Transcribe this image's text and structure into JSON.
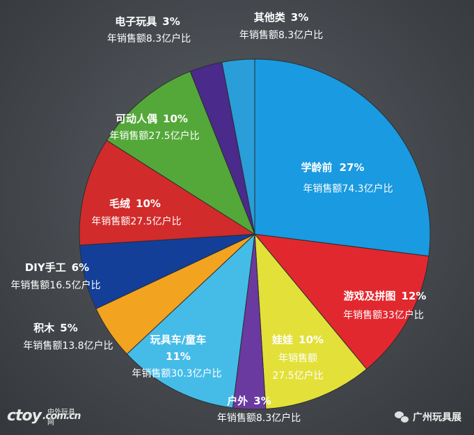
{
  "chart_data": {
    "type": "pie",
    "slices": [
      {
        "key": "preschool",
        "name": "学龄前",
        "percent": 27,
        "pct_label": "27%",
        "sales": "年销售额74.3亿户比",
        "color": "#1a9ae0"
      },
      {
        "key": "games",
        "name": "游戏及拼图",
        "percent": 12,
        "pct_label": "12%",
        "sales": "年销售额33亿户比",
        "color": "#e2282f"
      },
      {
        "key": "dolls",
        "name": "娃娃",
        "percent": 10,
        "pct_label": "10%",
        "sales_line1": "年销售额",
        "sales_line2": "27.5亿户比",
        "color": "#e3e03a"
      },
      {
        "key": "outdoor",
        "name": "户外",
        "percent": 3,
        "pct_label": "3%",
        "sales": "年销售额8.3亿户比",
        "color": "#6b3aa0"
      },
      {
        "key": "ride-on",
        "name": "玩具车/童车",
        "percent": 11,
        "pct_label": "11%",
        "sales": "年销售额30.3亿户比",
        "color": "#45bce8"
      },
      {
        "key": "blocks",
        "name": "积木",
        "percent": 5,
        "pct_label": "5%",
        "sales": "年销售额13.8亿户比",
        "color": "#f2a320"
      },
      {
        "key": "diy",
        "name": "DIY手工",
        "percent": 6,
        "pct_label": "6%",
        "sales": "年销售额16.5亿户比",
        "color": "#133f99"
      },
      {
        "key": "plush",
        "name": "毛绒",
        "percent": 10,
        "pct_label": "10%",
        "sales": "年销售额27.5亿户比",
        "color": "#d12b2b"
      },
      {
        "key": "action-figures",
        "name": "可动人偶",
        "percent": 10,
        "pct_label": "10%",
        "sales": "年销售额27.5亿户比",
        "color": "#54a83a"
      },
      {
        "key": "electronic",
        "name": "电子玩具",
        "percent": 3,
        "pct_label": "3%",
        "sales": "年销售额8.3亿户比",
        "color": "#4a2a8a"
      },
      {
        "key": "other",
        "name": "其他类",
        "percent": 3,
        "pct_label": "3%",
        "sales": "年销售额8.3亿户比",
        "color": "#2a9ed8"
      }
    ]
  },
  "watermark_left": {
    "logo": "ctoy",
    "sub": "中外玩具网",
    "domain": ".com.cn"
  },
  "watermark_right": {
    "icon": "wechat-icon",
    "text": "广州玩具展"
  }
}
